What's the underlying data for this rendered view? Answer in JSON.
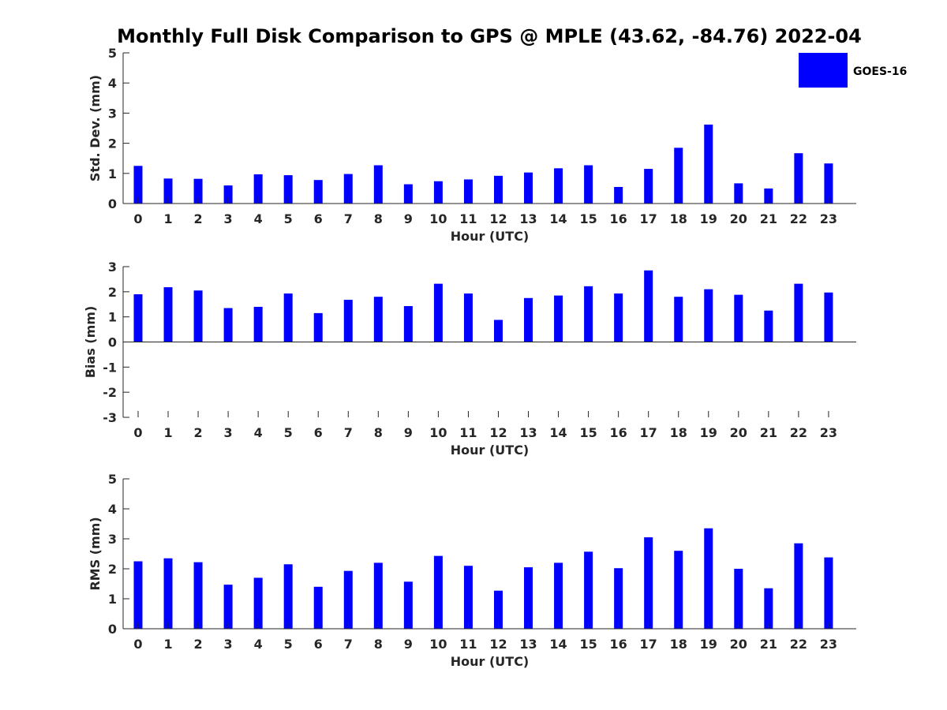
{
  "figure_title": "Monthly Full Disk Comparison to GPS @ MPLE (43.62, -84.76) 2022-04",
  "legend": {
    "label": "GOES-16",
    "color": "#0000ff",
    "placement": "top-right"
  },
  "chart_data": [
    {
      "type": "bar",
      "ylabel": "Std. Dev. (mm)",
      "xlabel": "Hour (UTC)",
      "categories": [
        "0",
        "1",
        "2",
        "3",
        "4",
        "5",
        "6",
        "7",
        "8",
        "9",
        "10",
        "11",
        "12",
        "13",
        "14",
        "15",
        "16",
        "17",
        "18",
        "19",
        "20",
        "21",
        "22",
        "23"
      ],
      "series": [
        {
          "name": "GOES-16",
          "color": "#0000ff",
          "values": [
            1.25,
            0.83,
            0.82,
            0.6,
            0.97,
            0.94,
            0.78,
            0.98,
            1.27,
            0.64,
            0.74,
            0.8,
            0.92,
            1.03,
            1.17,
            1.27,
            0.55,
            1.15,
            1.85,
            2.62,
            0.67,
            0.5,
            1.67,
            1.33
          ]
        }
      ],
      "ylim": [
        0,
        5
      ],
      "yticks": [
        0,
        1,
        2,
        3,
        4,
        5
      ],
      "grid": false
    },
    {
      "type": "bar",
      "ylabel": "Bias (mm)",
      "xlabel": "Hour (UTC)",
      "categories": [
        "0",
        "1",
        "2",
        "3",
        "4",
        "5",
        "6",
        "7",
        "8",
        "9",
        "10",
        "11",
        "12",
        "13",
        "14",
        "15",
        "16",
        "17",
        "18",
        "19",
        "20",
        "21",
        "22",
        "23"
      ],
      "series": [
        {
          "name": "GOES-16",
          "color": "#0000ff",
          "values": [
            1.9,
            2.18,
            2.05,
            1.35,
            1.4,
            1.93,
            1.15,
            1.68,
            1.8,
            1.43,
            2.32,
            1.93,
            0.88,
            1.75,
            1.85,
            2.22,
            1.93,
            2.85,
            1.8,
            2.1,
            1.88,
            1.25,
            2.32,
            1.97
          ]
        }
      ],
      "ylim": [
        -3,
        3
      ],
      "yticks": [
        -3,
        -2,
        -1,
        0,
        1,
        2,
        3
      ],
      "grid": false
    },
    {
      "type": "bar",
      "ylabel": "RMS (mm)",
      "xlabel": "Hour (UTC)",
      "categories": [
        "0",
        "1",
        "2",
        "3",
        "4",
        "5",
        "6",
        "7",
        "8",
        "9",
        "10",
        "11",
        "12",
        "13",
        "14",
        "15",
        "16",
        "17",
        "18",
        "19",
        "20",
        "21",
        "22",
        "23"
      ],
      "series": [
        {
          "name": "GOES-16",
          "color": "#0000ff",
          "values": [
            2.25,
            2.35,
            2.22,
            1.47,
            1.7,
            2.15,
            1.4,
            1.93,
            2.2,
            1.57,
            2.43,
            2.1,
            1.27,
            2.05,
            2.2,
            2.57,
            2.02,
            3.05,
            2.6,
            3.35,
            2.0,
            1.35,
            2.85,
            2.38
          ]
        }
      ],
      "ylim": [
        0,
        5
      ],
      "yticks": [
        0,
        1,
        2,
        3,
        4,
        5
      ],
      "grid": false
    }
  ]
}
